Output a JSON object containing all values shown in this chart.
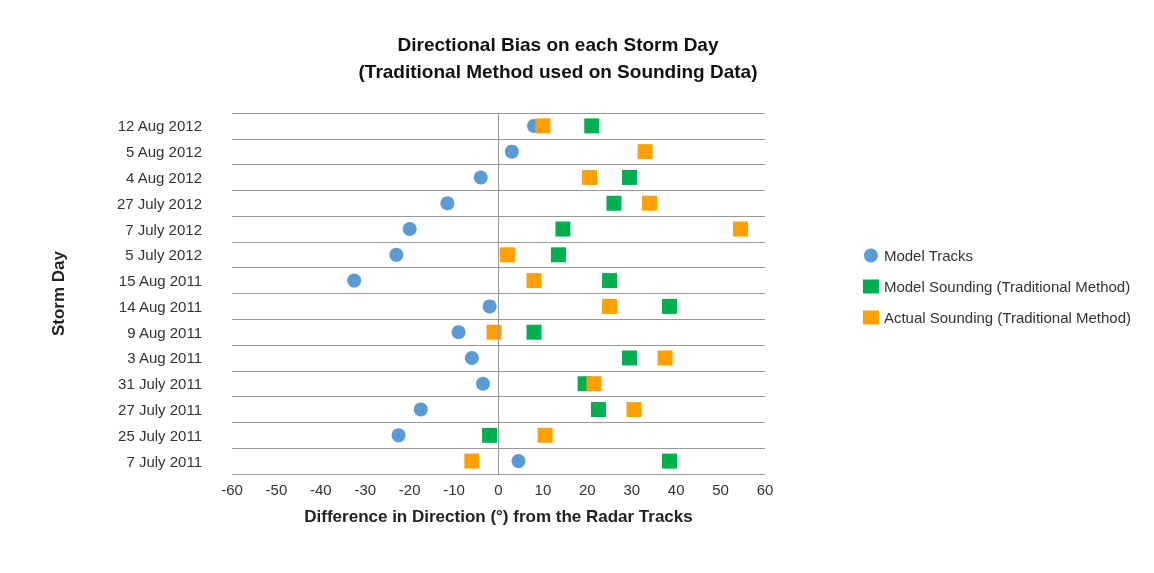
{
  "chart_data": {
    "type": "scatter",
    "orientation": "horizontal",
    "title": "Directional Bias on each Storm Day",
    "subtitle": "(Traditional Method used on Sounding Data)",
    "xlabel": "Difference in Direction (°) from the Radar Tracks",
    "ylabel": "Storm Day",
    "categories": [
      "12 Aug 2012",
      "5 Aug 2012",
      "4 Aug 2012",
      "27 July 2012",
      "7 July 2012",
      "5 July 2012",
      "15 Aug 2011",
      "14 Aug 2011",
      "9 Aug 2011",
      "3 Aug 2011",
      "31 July 2011",
      "27 July 2011",
      "25 July 2011",
      "7 July 2011"
    ],
    "series": [
      {
        "name": "Model Tracks",
        "color": "#5b9bd5",
        "marker": "circle",
        "values": [
          8,
          3,
          -4,
          -11.5,
          -20,
          -23,
          -32.5,
          -2,
          -9,
          -6,
          -3.5,
          -17.5,
          -22.5,
          4.5
        ]
      },
      {
        "name": "Model Sounding (Traditional Method)",
        "color": "#00b050",
        "marker": "square",
        "values": [
          21,
          null,
          29.5,
          26,
          14.5,
          13.5,
          25,
          38.5,
          8,
          29.5,
          19.5,
          22.5,
          -2,
          38.5
        ]
      },
      {
        "name": "Actual Sounding (Traditional Method)",
        "color": "#ffa000",
        "marker": "square",
        "values": [
          10,
          33,
          20.5,
          34,
          54.5,
          2,
          8,
          25,
          -1,
          37.5,
          21.5,
          30.5,
          10.5,
          -6
        ]
      }
    ],
    "xlim": [
      -60,
      60
    ],
    "xticks": [
      -60,
      -50,
      -40,
      -30,
      -20,
      -10,
      0,
      10,
      20,
      30,
      40,
      50,
      60
    ],
    "grid": "y",
    "legend": "right",
    "ref_lines": [
      {
        "axis": "x",
        "value": 0,
        "color": "#999999"
      }
    ]
  }
}
